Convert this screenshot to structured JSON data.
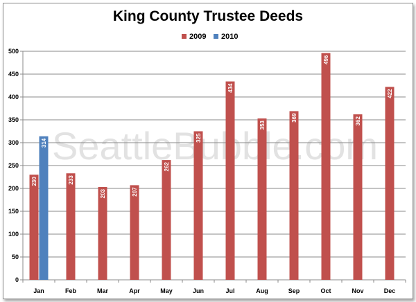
{
  "chart_data": {
    "type": "bar",
    "title": "King County Trustee Deeds",
    "xlabel": "",
    "ylabel": "",
    "categories": [
      "Jan",
      "Feb",
      "Mar",
      "Apr",
      "May",
      "Jun",
      "Jul",
      "Aug",
      "Sep",
      "Oct",
      "Nov",
      "Dec"
    ],
    "series": [
      {
        "name": "2009",
        "color": "#c0504d",
        "values": [
          230,
          233,
          203,
          207,
          262,
          325,
          434,
          353,
          369,
          496,
          362,
          422
        ]
      },
      {
        "name": "2010",
        "color": "#4f81bd",
        "values": [
          314,
          null,
          null,
          null,
          null,
          null,
          null,
          null,
          null,
          null,
          null,
          null
        ]
      }
    ],
    "ylim": [
      0,
      500
    ],
    "yticks": [
      0,
      50,
      100,
      150,
      200,
      250,
      300,
      350,
      400,
      450,
      500
    ],
    "grid": true,
    "legend_position": "top",
    "data_labels": true,
    "watermark": "SeattleBubble.com"
  }
}
